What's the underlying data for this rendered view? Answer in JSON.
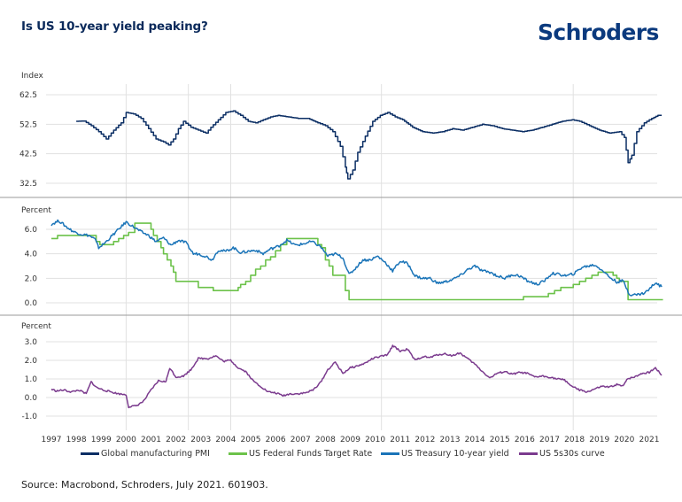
{
  "header": {
    "title": "Is US 10-year yield peaking?",
    "logo_text": "Schroders"
  },
  "colors": {
    "pmi": "#0b2e64",
    "fed_funds": "#6cc24a",
    "treasury_10y": "#1a74b8",
    "curve_5s30s": "#7b3b8e",
    "title": "#0b2a5b",
    "logo": "#0b3a7e",
    "grid": "#e1e1e1"
  },
  "legend": [
    {
      "label": "Global manufacturing PMI",
      "color_key": "pmi"
    },
    {
      "label": "US Federal Funds Target Rate",
      "color_key": "fed_funds"
    },
    {
      "label": "US Treasury 10-year yield",
      "color_key": "treasury_10y"
    },
    {
      "label": "US 5s30s curve",
      "color_key": "curve_5s30s"
    }
  ],
  "source": "Source: Macrobond, Schroders, July 2021. 601903.",
  "chart_data": [
    {
      "type": "line",
      "panel": "top",
      "ylabel": "Index",
      "ylim": [
        30,
        63
      ],
      "yticks": [
        "62.5",
        "52.5",
        "42.5",
        "32.5"
      ],
      "ytick_values": [
        62.5,
        52.5,
        42.5,
        32.5
      ],
      "grid": true,
      "series": [
        {
          "name": "Global manufacturing PMI",
          "color_key": "pmi",
          "x": [
            1998.0,
            1998.3,
            1998.6,
            1998.9,
            1999.2,
            1999.5,
            1999.8,
            2000.0,
            2000.3,
            2000.6,
            2000.9,
            2001.2,
            2001.5,
            2001.7,
            2001.9,
            2002.1,
            2002.3,
            2002.6,
            2002.9,
            2003.2,
            2003.4,
            2003.7,
            2004.0,
            2004.3,
            2004.6,
            2004.9,
            2005.2,
            2005.5,
            2005.8,
            2006.1,
            2006.5,
            2006.9,
            2007.3,
            2007.7,
            2008.0,
            2008.3,
            2008.6,
            2008.8,
            2008.9,
            2009.1,
            2009.3,
            2009.6,
            2009.9,
            2010.2,
            2010.5,
            2010.8,
            2011.1,
            2011.5,
            2011.9,
            2012.3,
            2012.7,
            2013.1,
            2013.5,
            2013.9,
            2014.3,
            2014.7,
            2015.1,
            2015.5,
            2015.9,
            2016.3,
            2016.7,
            2017.1,
            2017.5,
            2017.9,
            2018.2,
            2018.6,
            2019.0,
            2019.4,
            2019.8,
            2020.0,
            2020.15,
            2020.3,
            2020.5,
            2020.8,
            2021.1,
            2021.35,
            2021.5
          ],
          "values": [
            53.5,
            53.6,
            52.0,
            50.0,
            47.5,
            50.5,
            53.0,
            56.5,
            56.0,
            54.5,
            51.0,
            47.5,
            46.5,
            45.5,
            47.5,
            51.0,
            53.5,
            51.5,
            50.5,
            49.5,
            51.5,
            54.0,
            56.5,
            57.0,
            55.5,
            53.5,
            53.0,
            54.0,
            55.0,
            55.5,
            55.0,
            54.5,
            54.5,
            53.0,
            52.0,
            50.0,
            45.0,
            38.0,
            34.0,
            37.0,
            43.0,
            48.5,
            53.5,
            55.5,
            56.5,
            55.0,
            54.0,
            51.5,
            50.0,
            49.5,
            50.0,
            51.0,
            50.5,
            51.5,
            52.5,
            52.0,
            51.0,
            50.5,
            50.0,
            50.5,
            51.5,
            52.5,
            53.5,
            54.0,
            53.5,
            52.0,
            50.5,
            49.5,
            50.0,
            48.0,
            39.5,
            42.0,
            50.0,
            53.0,
            54.5,
            55.5,
            55.5
          ]
        }
      ]
    },
    {
      "type": "line",
      "panel": "middle",
      "ylabel": "Percent",
      "ylim": [
        -0.5,
        7.0
      ],
      "yticks": [
        "6.0",
        "4.0",
        "2.0",
        "0.0"
      ],
      "ytick_values": [
        6.0,
        4.0,
        2.0,
        0.0
      ],
      "grid": true,
      "series": [
        {
          "name": "US Federal Funds Target Rate",
          "color_key": "fed_funds",
          "step": true,
          "x": [
            1997.0,
            1997.25,
            1998.8,
            1998.95,
            1999.5,
            1999.7,
            1999.9,
            2000.1,
            2000.35,
            2001.0,
            2001.1,
            2001.25,
            2001.4,
            2001.5,
            2001.65,
            2001.8,
            2001.9,
            2002.0,
            2002.9,
            2003.5,
            2004.5,
            2004.6,
            2004.8,
            2005.0,
            2005.2,
            2005.4,
            2005.6,
            2005.8,
            2006.0,
            2006.2,
            2006.45,
            2007.7,
            2007.85,
            2008.0,
            2008.15,
            2008.3,
            2008.8,
            2008.95,
            2015.95,
            2016.95,
            2017.2,
            2017.45,
            2017.95,
            2018.2,
            2018.45,
            2018.7,
            2018.95,
            2019.55,
            2019.7,
            2019.8,
            2020.15,
            2021.55
          ],
          "values": [
            5.25,
            5.5,
            5.0,
            4.75,
            5.0,
            5.25,
            5.5,
            5.75,
            6.5,
            6.0,
            5.5,
            5.0,
            4.5,
            4.0,
            3.5,
            3.0,
            2.5,
            1.75,
            1.25,
            1.0,
            1.25,
            1.5,
            1.75,
            2.25,
            2.75,
            3.0,
            3.5,
            3.75,
            4.25,
            4.75,
            5.25,
            4.75,
            4.5,
            3.5,
            3.0,
            2.25,
            1.0,
            0.25,
            0.5,
            0.75,
            1.0,
            1.25,
            1.5,
            1.75,
            2.0,
            2.25,
            2.5,
            2.25,
            2.0,
            1.75,
            0.25,
            0.25
          ]
        },
        {
          "name": "US Treasury 10-year yield",
          "color_key": "treasury_10y",
          "x": [
            1997.0,
            1997.3,
            1997.6,
            1997.9,
            1998.2,
            1998.5,
            1998.75,
            1998.9,
            1999.1,
            1999.4,
            1999.7,
            2000.0,
            2000.3,
            2000.6,
            2000.9,
            2001.2,
            2001.5,
            2001.8,
            2002.1,
            2002.4,
            2002.7,
            2002.9,
            2003.2,
            2003.45,
            2003.7,
            2004.0,
            2004.3,
            2004.6,
            2004.9,
            2005.2,
            2005.5,
            2005.8,
            2006.1,
            2006.45,
            2006.8,
            2007.1,
            2007.45,
            2007.8,
            2008.1,
            2008.4,
            2008.7,
            2008.95,
            2009.2,
            2009.5,
            2009.8,
            2010.1,
            2010.4,
            2010.7,
            2011.0,
            2011.3,
            2011.6,
            2011.9,
            2012.2,
            2012.5,
            2012.8,
            2013.1,
            2013.4,
            2013.7,
            2014.0,
            2014.3,
            2014.6,
            2014.9,
            2015.2,
            2015.5,
            2015.8,
            2016.1,
            2016.5,
            2016.8,
            2017.1,
            2017.4,
            2017.7,
            2018.0,
            2018.3,
            2018.8,
            2019.1,
            2019.4,
            2019.7,
            2019.95,
            2020.2,
            2020.5,
            2020.8,
            2021.0,
            2021.25,
            2021.5
          ],
          "values": [
            6.4,
            6.7,
            6.2,
            5.8,
            5.6,
            5.5,
            5.2,
            4.5,
            4.8,
            5.4,
            6.0,
            6.6,
            6.2,
            5.8,
            5.5,
            5.0,
            5.3,
            4.7,
            5.1,
            4.9,
            4.0,
            4.0,
            3.8,
            3.5,
            4.3,
            4.2,
            4.5,
            4.1,
            4.2,
            4.3,
            4.0,
            4.4,
            4.6,
            5.1,
            4.7,
            4.8,
            5.0,
            4.6,
            3.8,
            4.0,
            3.7,
            2.3,
            2.8,
            3.5,
            3.5,
            3.8,
            3.3,
            2.6,
            3.4,
            3.2,
            2.2,
            2.0,
            2.0,
            1.6,
            1.7,
            1.9,
            2.2,
            2.7,
            3.0,
            2.6,
            2.5,
            2.2,
            2.0,
            2.3,
            2.2,
            1.8,
            1.5,
            1.8,
            2.4,
            2.3,
            2.2,
            2.4,
            2.9,
            3.1,
            2.7,
            2.1,
            1.7,
            1.8,
            0.7,
            0.65,
            0.8,
            1.1,
            1.65,
            1.3
          ]
        }
      ]
    },
    {
      "type": "line",
      "panel": "bottom",
      "ylabel": "Percent",
      "ylim": [
        -1.0,
        3.3
      ],
      "yticks": [
        "3.0",
        "2.0",
        "1.0",
        "0.0",
        "-1.0"
      ],
      "ytick_values": [
        3.0,
        2.0,
        1.0,
        0.0,
        -1.0
      ],
      "grid": true,
      "series": [
        {
          "name": "US 5s30s curve",
          "color_key": "curve_5s30s",
          "x": [
            1997.0,
            1997.2,
            1997.5,
            1997.8,
            1998.1,
            1998.4,
            1998.6,
            1998.8,
            1999.1,
            1999.4,
            1999.7,
            2000.0,
            2000.1,
            2000.4,
            2000.7,
            2001.0,
            2001.3,
            2001.6,
            2001.75,
            2002.0,
            2002.3,
            2002.6,
            2002.9,
            2003.3,
            2003.6,
            2003.9,
            2004.2,
            2004.5,
            2004.8,
            2005.1,
            2005.4,
            2005.7,
            2006.0,
            2006.3,
            2006.6,
            2006.9,
            2007.2,
            2007.5,
            2007.8,
            2008.1,
            2008.4,
            2008.7,
            2009.0,
            2009.3,
            2009.6,
            2009.9,
            2010.2,
            2010.5,
            2010.7,
            2011.0,
            2011.3,
            2011.6,
            2011.9,
            2012.2,
            2012.5,
            2012.8,
            2013.1,
            2013.4,
            2013.7,
            2014.0,
            2014.3,
            2014.6,
            2014.9,
            2015.2,
            2015.5,
            2015.8,
            2016.1,
            2016.4,
            2016.7,
            2017.0,
            2017.3,
            2017.6,
            2017.9,
            2018.2,
            2018.5,
            2018.8,
            2019.1,
            2019.4,
            2019.7,
            2019.95,
            2020.1,
            2020.4,
            2020.7,
            2021.0,
            2021.25,
            2021.5
          ],
          "values": [
            0.45,
            0.35,
            0.4,
            0.3,
            0.4,
            0.2,
            0.85,
            0.55,
            0.4,
            0.3,
            0.2,
            0.15,
            -0.5,
            -0.45,
            -0.2,
            0.4,
            0.9,
            0.85,
            1.6,
            1.1,
            1.15,
            1.5,
            2.1,
            2.1,
            2.25,
            1.95,
            2.0,
            1.6,
            1.4,
            0.9,
            0.6,
            0.3,
            0.25,
            0.1,
            0.2,
            0.2,
            0.25,
            0.4,
            0.8,
            1.5,
            1.9,
            1.3,
            1.6,
            1.7,
            1.85,
            2.1,
            2.2,
            2.3,
            2.8,
            2.5,
            2.6,
            2.0,
            2.2,
            2.15,
            2.3,
            2.35,
            2.25,
            2.4,
            2.1,
            1.8,
            1.4,
            1.05,
            1.3,
            1.4,
            1.25,
            1.35,
            1.3,
            1.1,
            1.15,
            1.1,
            1.0,
            0.95,
            0.6,
            0.4,
            0.3,
            0.45,
            0.6,
            0.55,
            0.7,
            0.6,
            1.0,
            1.1,
            1.3,
            1.35,
            1.6,
            1.2
          ]
        }
      ]
    }
  ],
  "x_axis": {
    "tick_labels": [
      "1997",
      "1998",
      "1999",
      "2000",
      "2001",
      "2002",
      "2003",
      "2004",
      "2005",
      "2006",
      "2007",
      "2008",
      "2009",
      "2010",
      "2011",
      "2012",
      "2013",
      "2014",
      "2015",
      "2016",
      "2017",
      "2018",
      "2019",
      "2020",
      "2021"
    ],
    "range": [
      1996.8,
      2021.65
    ],
    "marker_lines": [
      2000.0,
      2002.5,
      2004.2,
      2010.25,
      2017.95
    ]
  }
}
